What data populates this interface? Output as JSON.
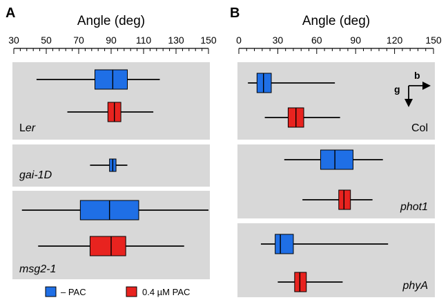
{
  "colors": {
    "neg_pac": "#1f6fe6",
    "pos_pac": "#e8231f",
    "group_bg": "#d8d8d8",
    "whisker": "#000000"
  },
  "chart_data": [
    {
      "type": "box",
      "panel": "A",
      "xlabel": "Angle (deg)",
      "xlim": [
        30,
        150
      ],
      "xticks": [
        30,
        50,
        70,
        90,
        110,
        130,
        150
      ],
      "groups": [
        {
          "label_parts": [
            "L",
            "er"
          ],
          "label_italic": [
            false,
            true
          ],
          "boxes": [
            {
              "series": "neg",
              "min": 44,
              "q1": 80,
              "median": 91,
              "q3": 100,
              "max": 120
            },
            {
              "series": "pos",
              "min": 63,
              "q1": 88,
              "median": 92,
              "q3": 96,
              "max": 116
            }
          ]
        },
        {
          "label_parts": [
            "gai-1D"
          ],
          "label_italic": [
            true
          ],
          "boxes": [
            {
              "series": "neg",
              "min": 77,
              "q1": 89,
              "median": 91,
              "q3": 93,
              "max": 100
            }
          ]
        },
        {
          "label_parts": [
            "msg2-1"
          ],
          "label_italic": [
            true
          ],
          "boxes": [
            {
              "series": "neg",
              "min": 35,
              "q1": 71,
              "median": 89,
              "q3": 107,
              "max": 150
            },
            {
              "series": "pos",
              "min": 45,
              "q1": 77,
              "median": 90,
              "q3": 99,
              "max": 135
            }
          ]
        }
      ]
    },
    {
      "type": "box",
      "panel": "B",
      "xlabel": "Angle (deg)",
      "xlim": [
        0,
        150
      ],
      "xticks": [
        0,
        30,
        60,
        90,
        120,
        150
      ],
      "groups": [
        {
          "label_parts": [
            "Col"
          ],
          "label_italic": [
            false
          ],
          "direction_labels": {
            "b": "b",
            "g": "g"
          },
          "boxes": [
            {
              "series": "neg",
              "min": 7,
              "q1": 14,
              "median": 19,
              "q3": 25,
              "max": 74
            },
            {
              "series": "pos",
              "min": 20,
              "q1": 38,
              "median": 44,
              "q3": 50,
              "max": 78
            }
          ]
        },
        {
          "label_parts": [
            "phot1"
          ],
          "label_italic": [
            true
          ],
          "boxes": [
            {
              "series": "neg",
              "min": 35,
              "q1": 63,
              "median": 74,
              "q3": 88,
              "max": 111
            },
            {
              "series": "pos",
              "min": 49,
              "q1": 77,
              "median": 81,
              "q3": 86,
              "max": 103
            }
          ]
        },
        {
          "label_parts": [
            "phyA"
          ],
          "label_italic": [
            true
          ],
          "boxes": [
            {
              "series": "neg",
              "min": 17,
              "q1": 28,
              "median": 32,
              "q3": 42,
              "max": 115
            },
            {
              "series": "pos",
              "min": 30,
              "q1": 43,
              "median": 47,
              "q3": 52,
              "max": 80
            }
          ]
        }
      ]
    }
  ],
  "legend": [
    {
      "series": "neg",
      "label": "– PAC"
    },
    {
      "series": "pos",
      "label": "0.4 µM PAC"
    }
  ]
}
